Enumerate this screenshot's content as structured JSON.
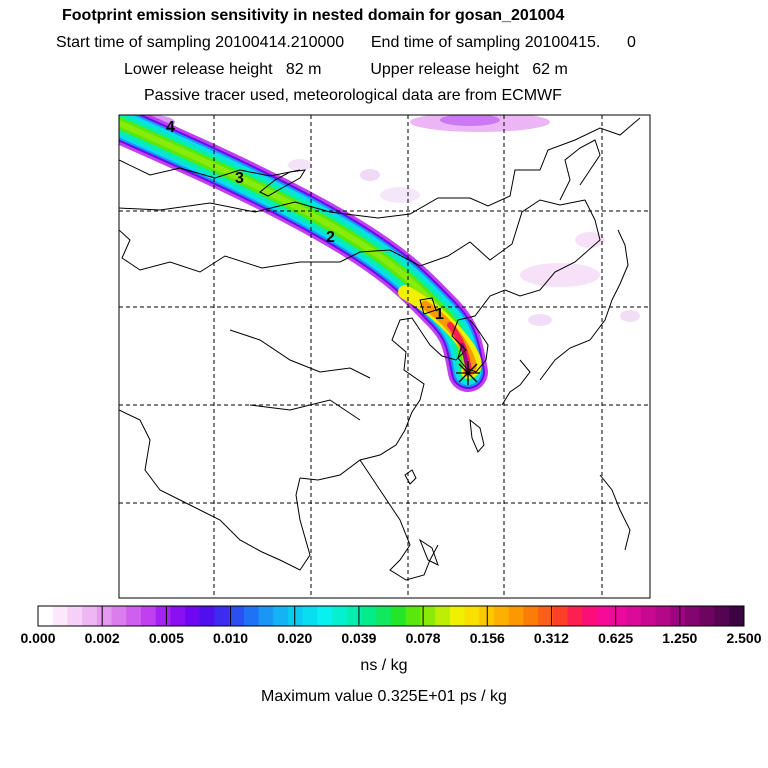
{
  "header": {
    "title": "Footprint emission sensitivity in nested domain for gosan_201004",
    "line2": "Start time of sampling 20100414.210000      End time of sampling 20100415.      0",
    "line3": "Lower release height   82 m           Upper release height   62 m",
    "line4": "Passive tracer used, meteorological data are from ECMWF"
  },
  "map": {
    "markers": [
      "4",
      "3",
      "2",
      "1"
    ],
    "receptor_symbol": "*"
  },
  "colorbar": {
    "tick_labels": [
      "0.000",
      "0.002",
      "0.005",
      "0.010",
      "0.020",
      "0.039",
      "0.078",
      "0.156",
      "0.312",
      "0.625",
      "1.250",
      "2.500"
    ],
    "colors": [
      "#ffffff",
      "#fbe9fb",
      "#f5d0f7",
      "#eeb6f2",
      "#e59af0",
      "#dc7ded",
      "#cf5fee",
      "#c040f0",
      "#a622f2",
      "#8a10f2",
      "#6d08f0",
      "#5010ee",
      "#3b2cf0",
      "#2a50f2",
      "#1e72f4",
      "#1a96f5",
      "#14b4f4",
      "#0ccbf2",
      "#08def0",
      "#08f0f0",
      "#06f0d0",
      "#04eeae",
      "#04ec88",
      "#10e860",
      "#24e628",
      "#58e80c",
      "#8aea08",
      "#bcee06",
      "#f0f000",
      "#f8e000",
      "#fcc800",
      "#fcb000",
      "#fc9800",
      "#fc7c0a",
      "#fc6018",
      "#fc4028",
      "#fc2050",
      "#fc0e78",
      "#f80a98",
      "#ec0a9e",
      "#dc0a98",
      "#c80890",
      "#b40888",
      "#9c0680",
      "#840470",
      "#6c0460",
      "#540450",
      "#3c0440"
    ]
  },
  "units": "ns / kg",
  "max_value": "Maximum value  0.325E+01 ps / kg"
}
